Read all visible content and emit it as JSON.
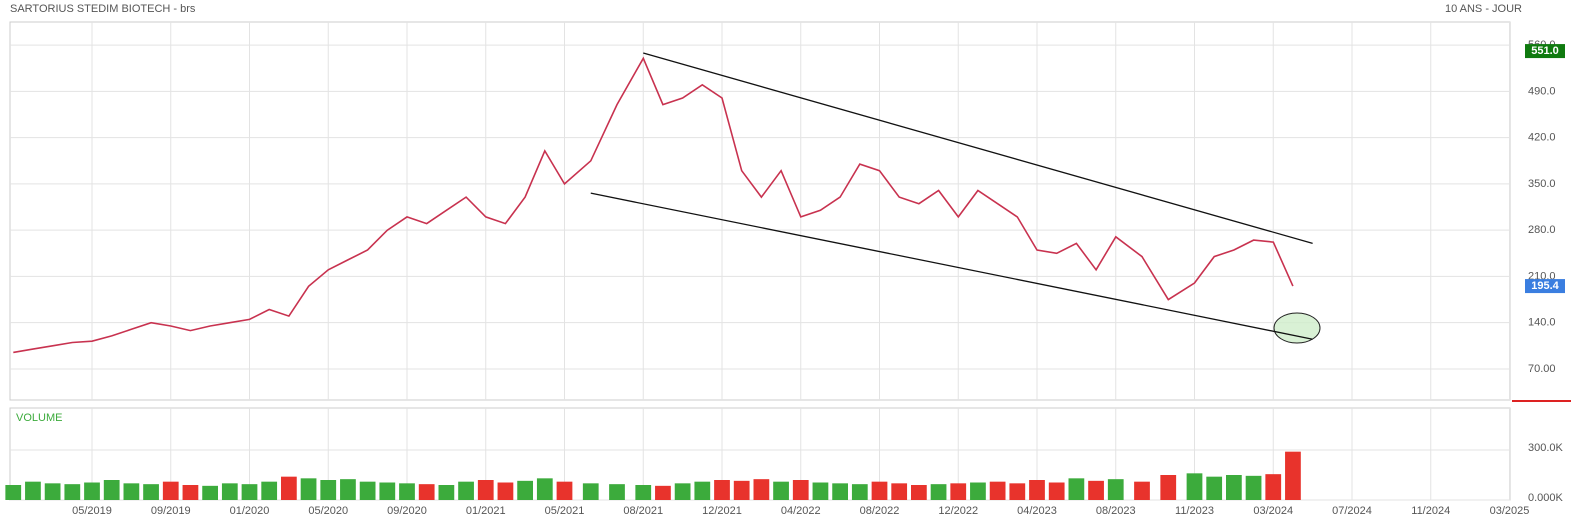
{
  "chart_data": [
    {
      "type": "line",
      "title": "SARTORIUS STEDIM BIOTECH - brs",
      "subtitle": "10 ANS - JOUR",
      "color": "#c8324f",
      "x": [
        "01/2019",
        "02/2019",
        "03/2019",
        "04/2019",
        "05/2019",
        "06/2019",
        "07/2019",
        "08/2019",
        "09/2019",
        "10/2019",
        "11/2019",
        "12/2019",
        "01/2020",
        "02/2020",
        "03/2020",
        "04/2020",
        "05/2020",
        "06/2020",
        "07/2020",
        "08/2020",
        "09/2020",
        "10/2020",
        "11/2020",
        "12/2020",
        "01/2021",
        "02/2021",
        "03/2021",
        "04/2021",
        "05/2021",
        "06/2021",
        "07/2021",
        "08/2021",
        "09/2021",
        "10/2021",
        "11/2021",
        "12/2021",
        "01/2022",
        "02/2022",
        "03/2022",
        "04/2022",
        "05/2022",
        "06/2022",
        "07/2022",
        "08/2022",
        "09/2022",
        "10/2022",
        "11/2022",
        "12/2022",
        "01/2023",
        "02/2023",
        "03/2023",
        "04/2023",
        "05/2023",
        "06/2023",
        "07/2023",
        "08/2023",
        "09/2023",
        "10/2023",
        "11/2023",
        "12/2023",
        "01/2024",
        "02/2024",
        "03/2024",
        "04/2024"
      ],
      "values": [
        95,
        100,
        105,
        110,
        112,
        120,
        130,
        140,
        135,
        128,
        135,
        140,
        145,
        160,
        150,
        195,
        220,
        235,
        250,
        280,
        300,
        290,
        310,
        330,
        300,
        290,
        330,
        400,
        350,
        385,
        470,
        540,
        470,
        480,
        500,
        480,
        370,
        330,
        370,
        300,
        310,
        330,
        380,
        370,
        330,
        320,
        340,
        300,
        340,
        320,
        300,
        250,
        245,
        260,
        220,
        270,
        240,
        175,
        200,
        240,
        250,
        265,
        262,
        195.4
      ],
      "ylim": [
        23,
        595
      ],
      "yticks": [
        {
          "value": 70,
          "label": "70.00"
        },
        {
          "value": 140,
          "label": "140.0"
        },
        {
          "value": 210,
          "label": "210.0"
        },
        {
          "value": 280,
          "label": "280.0"
        },
        {
          "value": 350,
          "label": "350.0"
        },
        {
          "value": 420,
          "label": "420.0"
        },
        {
          "value": 490,
          "label": "490.0"
        },
        {
          "value": 560,
          "label": "560.0"
        }
      ],
      "xticks": [
        "05/2019",
        "09/2019",
        "01/2020",
        "05/2020",
        "09/2020",
        "01/2021",
        "05/2021",
        "08/2021",
        "12/2021",
        "04/2022",
        "08/2022",
        "12/2022",
        "04/2023",
        "08/2023",
        "11/2023",
        "03/2024",
        "07/2024",
        "11/2024",
        "03/2025"
      ],
      "grid": true,
      "trendlines": [
        {
          "x": [
            "08/2021",
            "05/2024"
          ],
          "y": [
            548,
            260
          ]
        },
        {
          "x": [
            "06/2021",
            "05/2024"
          ],
          "y": [
            336,
            115
          ]
        }
      ],
      "price_flags": [
        {
          "value": 551.0,
          "label": "551.0",
          "color": "#0f7a0f"
        },
        {
          "value": 195.4,
          "label": "195.4",
          "color": "#3a7ee0"
        }
      ]
    },
    {
      "type": "bar",
      "title": "VOLUME",
      "color": "#3cab3c",
      "down_color": "#e8332c",
      "values": [
        90000,
        110000,
        100000,
        95000,
        105000,
        120000,
        100000,
        95000,
        110000,
        90000,
        85000,
        100000,
        95000,
        110000,
        140000,
        130000,
        120000,
        125000,
        110000,
        105000,
        100000,
        95000,
        90000,
        110000,
        120000,
        105000,
        115000,
        130000,
        110000,
        100000,
        95000,
        90000,
        85000,
        100000,
        110000,
        120000,
        115000,
        125000,
        110000,
        120000,
        105000,
        100000,
        95000,
        110000,
        100000,
        90000,
        95000,
        100000,
        105000,
        110000,
        100000,
        120000,
        105000,
        130000,
        115000,
        125000,
        110000,
        150000,
        160000,
        140000,
        150000,
        145000,
        155000,
        290000
      ],
      "ylim": [
        0,
        552000
      ],
      "yticks": [
        {
          "value": 0,
          "label": "0.000K"
        },
        {
          "value": 300000,
          "label": "300.0K"
        }
      ]
    }
  ]
}
